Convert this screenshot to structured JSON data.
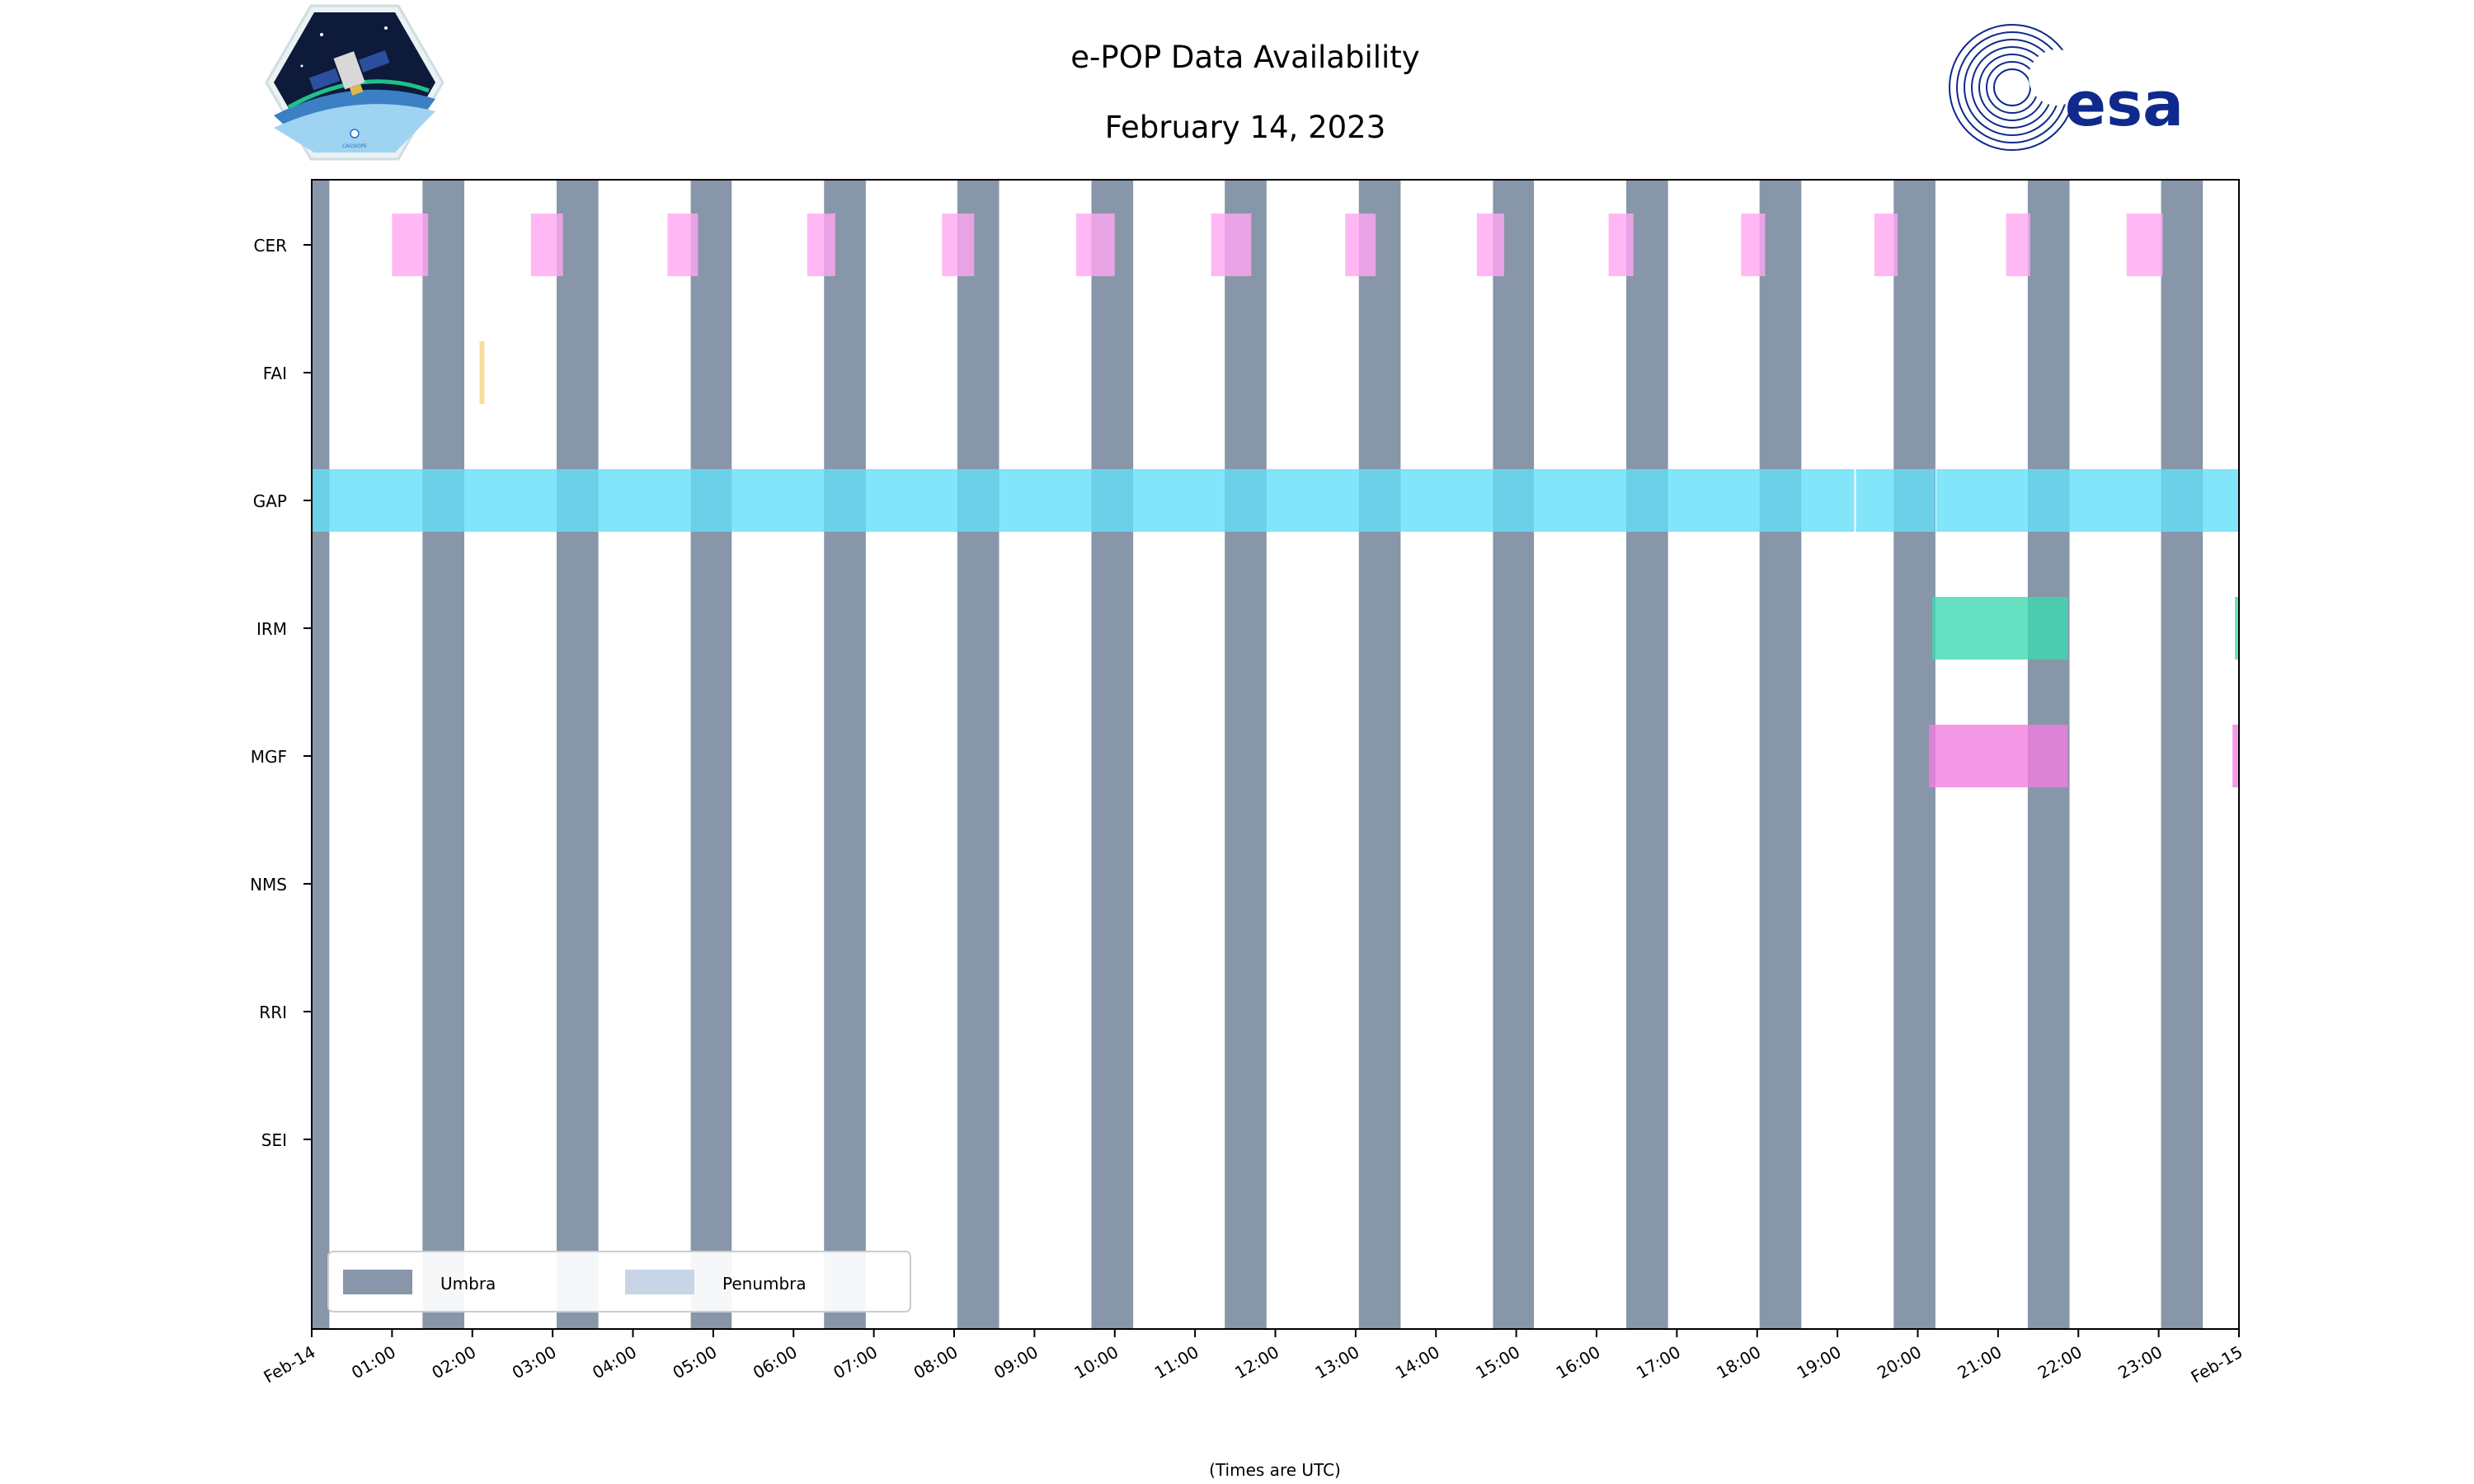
{
  "colors": {
    "umbra": "#8796a8",
    "penumbra": "#c7d5e7",
    "CER": "#ffa6f1",
    "FAI": "#f7d282",
    "GAP": "#64dff8",
    "IRM": "#3ed8b0",
    "MGF": "#f17ee0",
    "esa": "#0f2a8c"
  },
  "logos": {
    "left_badge_text": "CASSIOPE",
    "right_text": "esa"
  },
  "chart_data": {
    "type": "timeline",
    "title": [
      "e-POP Data Availability",
      "February 14, 2023"
    ],
    "xlabel": "(Times are UTC)",
    "ylabel": "",
    "x_range_hours": [
      0,
      24
    ],
    "xtick_labels": [
      "Feb-14",
      "01:00",
      "02:00",
      "03:00",
      "04:00",
      "05:00",
      "06:00",
      "07:00",
      "08:00",
      "09:00",
      "10:00",
      "11:00",
      "12:00",
      "13:00",
      "14:00",
      "15:00",
      "16:00",
      "17:00",
      "18:00",
      "19:00",
      "20:00",
      "21:00",
      "22:00",
      "23:00",
      "Feb-15"
    ],
    "instruments": [
      "CER",
      "FAI",
      "GAP",
      "IRM",
      "MGF",
      "NMS",
      "RRI",
      "SEI"
    ],
    "umbra_intervals_hours": [
      [
        0.0,
        0.22
      ],
      [
        1.38,
        1.9
      ],
      [
        3.05,
        3.57
      ],
      [
        4.72,
        5.23
      ],
      [
        6.38,
        6.9
      ],
      [
        8.04,
        8.56
      ],
      [
        9.71,
        10.23
      ],
      [
        11.37,
        11.89
      ],
      [
        13.04,
        13.56
      ],
      [
        14.71,
        15.22
      ],
      [
        16.37,
        16.89
      ],
      [
        18.03,
        18.55
      ],
      [
        19.7,
        20.22
      ],
      [
        21.37,
        21.89
      ],
      [
        23.03,
        23.55
      ]
    ],
    "penumbra_intervals_hours": [],
    "data_intervals_hours": {
      "CER": [
        [
          1.0,
          1.45
        ],
        [
          2.73,
          3.13
        ],
        [
          4.43,
          4.81
        ],
        [
          6.17,
          6.52
        ],
        [
          7.85,
          8.25
        ],
        [
          9.52,
          10.0
        ],
        [
          11.2,
          11.7
        ],
        [
          12.87,
          13.25
        ],
        [
          14.51,
          14.85
        ],
        [
          16.15,
          16.46
        ],
        [
          17.8,
          18.1
        ],
        [
          19.46,
          19.75
        ],
        [
          21.1,
          21.4
        ],
        [
          22.6,
          23.05
        ]
      ],
      "FAI": [
        [
          2.09,
          2.15
        ]
      ],
      "GAP": [
        [
          0.0,
          19.21
        ],
        [
          19.23,
          20.21
        ],
        [
          20.23,
          24.0
        ]
      ],
      "IRM": [
        [
          20.18,
          21.87
        ],
        [
          23.95,
          24.0
        ]
      ],
      "MGF": [
        [
          20.14,
          21.87
        ],
        [
          23.92,
          24.0
        ]
      ],
      "NMS": [],
      "RRI": [],
      "SEI": []
    },
    "legend": {
      "placement": "lower-left",
      "entries": [
        "Umbra",
        "Penumbra"
      ]
    }
  }
}
